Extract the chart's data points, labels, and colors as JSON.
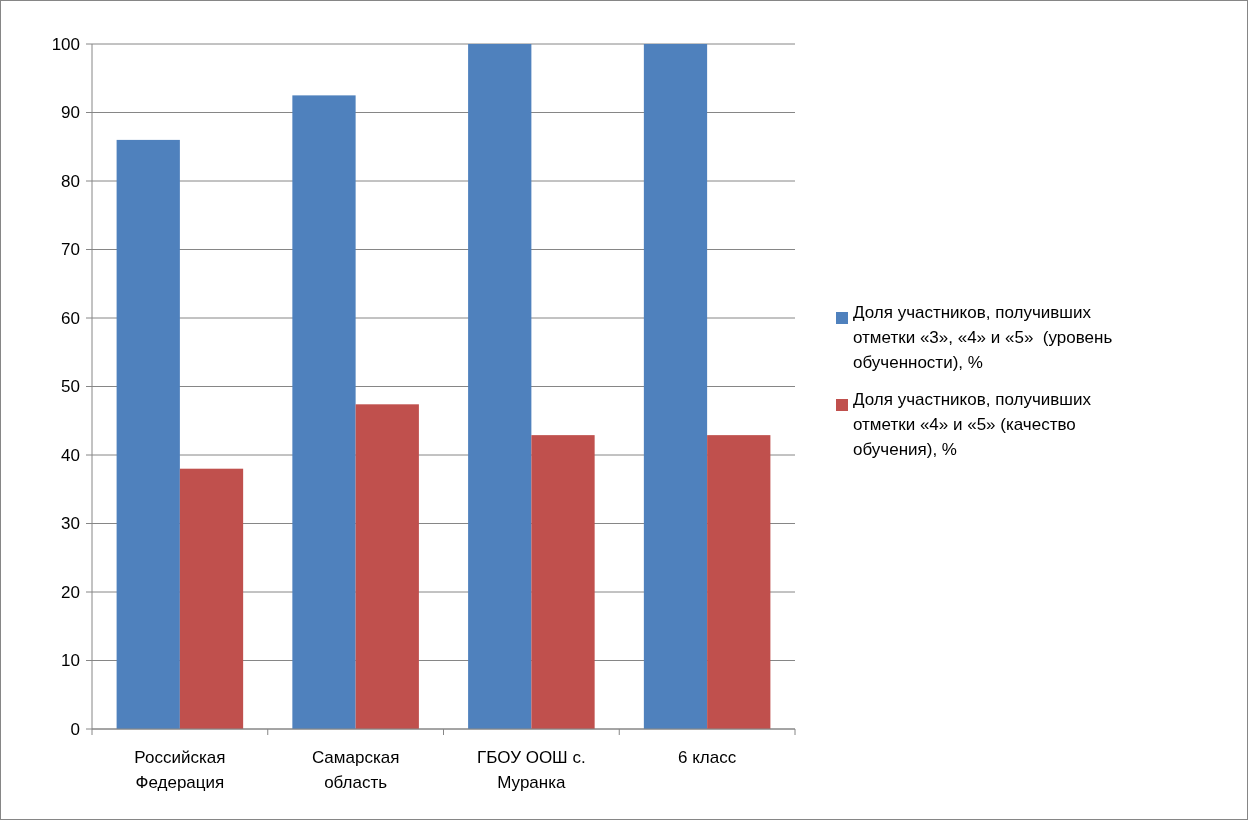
{
  "chart_data": {
    "type": "bar",
    "categories": [
      "Российская Федерация",
      "Самарская область",
      "ГБОУ ООШ с. Муранка",
      "6 класс"
    ],
    "series": [
      {
        "name": "Доля участников, получивших отметки «3», «4» и «5»  (уровень обученности), %",
        "color": "#4f81bd",
        "values": [
          86,
          92.5,
          100,
          100
        ]
      },
      {
        "name": "Доля участников, получивших отметки «4» и «5» (качество обучения), %",
        "color": "#c0504d",
        "values": [
          38,
          47.4,
          42.9,
          42.9
        ]
      }
    ],
    "ylim": [
      0,
      100
    ],
    "yticks": [
      0,
      10,
      20,
      30,
      40,
      50,
      60,
      70,
      80,
      90,
      100
    ],
    "grid": "y",
    "legend": "right"
  }
}
